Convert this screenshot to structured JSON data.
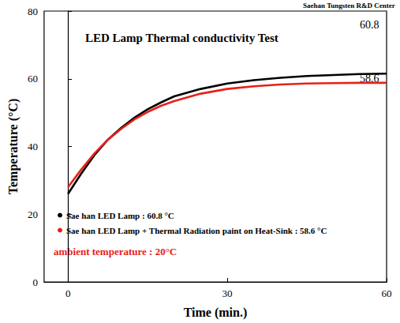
{
  "chart_data": {
    "type": "line",
    "title": "LED Lamp Thermal conductivity Test",
    "subtitle": "Saehan Tungsten R&D Center",
    "x_label": "Time (min.)",
    "y_label": "Temperature (°C)",
    "x": [
      0,
      2.5,
      5,
      7.5,
      10,
      12.5,
      15,
      17.5,
      20,
      25,
      30,
      35,
      40,
      45,
      50,
      55,
      60
    ],
    "series": [
      {
        "name": "Sae han LED Lamp : 60.8 °C",
        "color": "#000000",
        "values": [
          26,
          32,
          37.5,
          42,
          45.5,
          48.5,
          51,
          53,
          54.8,
          57,
          58.6,
          59.6,
          60.3,
          60.8,
          61.1,
          61.4,
          61.5
        ]
      },
      {
        "name": "Sae han LED Lamp + Thermal Radiation paint on Heat-Sink : 58.6 °C",
        "color": "#e8201a",
        "values": [
          28,
          33.2,
          38,
          42,
          45.2,
          48,
          50.2,
          52,
          53.4,
          55.6,
          57,
          57.8,
          58.3,
          58.6,
          58.7,
          58.8,
          58.8
        ]
      }
    ],
    "annotations": [
      {
        "text": "60.8",
        "color": "#000000"
      },
      {
        "text": "58.6",
        "color": "#000000"
      },
      {
        "text": "ambient temperature : 20°C",
        "color": "#e8201a"
      }
    ],
    "xlim": [
      -4.5,
      60
    ],
    "xticks": [
      0,
      30,
      60
    ],
    "ylim": [
      0,
      80
    ],
    "yticks": [
      0,
      20,
      40,
      60,
      80
    ],
    "grid": false,
    "legend": "lower left"
  }
}
